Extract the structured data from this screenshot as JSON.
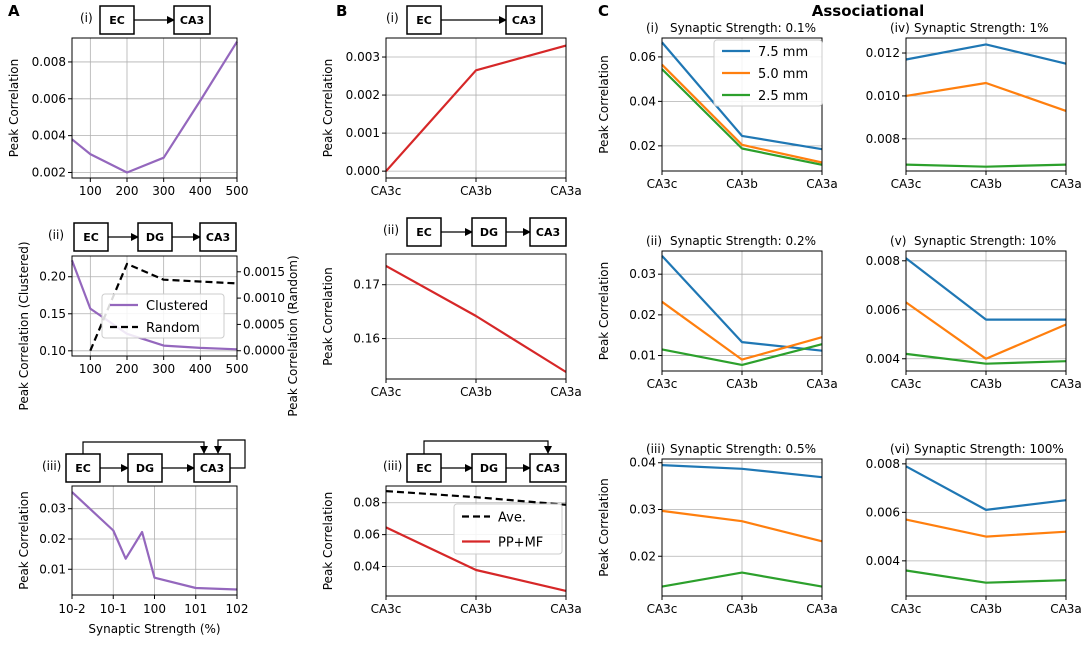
{
  "panel_letters": [
    "A",
    "B",
    "C"
  ],
  "associational_title": "Associational",
  "flow_labels": {
    "ec": "EC",
    "dg": "DG",
    "ca3": "CA3"
  },
  "colors": {
    "purple": "#9467bd",
    "red": "#d62728",
    "blue": "#1f77b4",
    "orange": "#ff7f0e",
    "green": "#2ca02c",
    "black": "#000000",
    "grid": "#b0b0b0"
  },
  "chart_data": [
    {
      "id": "A-i",
      "type": "line",
      "roman": "(i)",
      "title": "",
      "ylabel": "Peak Correlation",
      "xlabel": "",
      "x": [
        50,
        100,
        200,
        300,
        400,
        500
      ],
      "xlim": [
        50,
        500
      ],
      "xticks": [
        "100",
        "200",
        "300",
        "400",
        "500"
      ],
      "ylim": [
        0.0017,
        0.0093
      ],
      "yticks": [
        0.002,
        0.004,
        0.006,
        0.008
      ],
      "ytick_labels": [
        "0.002",
        "0.004",
        "0.006",
        "0.008"
      ],
      "series": [
        {
          "name": "",
          "values": [
            0.0038,
            0.003,
            0.002,
            0.0028,
            0.0059,
            0.0091
          ],
          "color": "#9467bd"
        }
      ]
    },
    {
      "id": "A-ii",
      "type": "line",
      "roman": "(ii)",
      "title": "",
      "ylabel": "Peak Correlation (Clustered)",
      "ylabel_right": "Peak Correlation (Random)",
      "xlabel": "",
      "x": [
        50,
        100,
        200,
        300,
        400,
        500
      ],
      "xlim": [
        50,
        500
      ],
      "xticks": [
        "100",
        "200",
        "300",
        "400",
        "500"
      ],
      "ylim": [
        0.093,
        0.228
      ],
      "yticks": [
        0.1,
        0.15,
        0.2
      ],
      "ytick_labels": [
        "0.10",
        "0.15",
        "0.20"
      ],
      "ylim_right": [
        -0.0001,
        0.0018
      ],
      "yticks_right": [
        0.0,
        0.0005,
        0.001,
        0.0015
      ],
      "ytick_labels_right": [
        "0.0000",
        "0.0005",
        "0.0010",
        "0.0015"
      ],
      "legend": [
        "Clustered",
        "Random"
      ],
      "series": [
        {
          "name": "Clustered",
          "values": [
            0.222,
            0.157,
            0.123,
            0.107,
            0.104,
            0.102
          ],
          "color": "#9467bd"
        },
        {
          "name": "Random",
          "axis": "right",
          "x": [
            100,
            200,
            300,
            500
          ],
          "values": [
            0.0,
            0.00165,
            0.00135,
            0.00128
          ],
          "color": "#000000",
          "dashed": true
        }
      ]
    },
    {
      "id": "A-iii",
      "type": "line",
      "roman": "(iii)",
      "title": "",
      "ylabel": "Peak Correlation",
      "xlabel": "Synaptic Strength (%)",
      "xscale": "log",
      "x": [
        0.01,
        0.1,
        0.2,
        0.5,
        1,
        10,
        100
      ],
      "xlim": [
        0.01,
        100
      ],
      "xticks": [
        "10-2",
        "10-1",
        "100",
        "101",
        "102"
      ],
      "ylim": [
        0.0015,
        0.0375
      ],
      "yticks": [
        0.01,
        0.02,
        0.03
      ],
      "ytick_labels": [
        "0.01",
        "0.02",
        "0.03"
      ],
      "series": [
        {
          "name": "",
          "values": [
            0.0355,
            0.0228,
            0.0135,
            0.0223,
            0.0072,
            0.0038,
            0.0033
          ],
          "color": "#9467bd"
        }
      ]
    },
    {
      "id": "B-i",
      "type": "line",
      "roman": "(i)",
      "title": "",
      "ylabel": "Peak Correlation",
      "xlabel": "",
      "categories": [
        "CA3c",
        "CA3b",
        "CA3a"
      ],
      "ylim": [
        -0.00018,
        0.0035
      ],
      "yticks": [
        0.0,
        0.001,
        0.002,
        0.003
      ],
      "ytick_labels": [
        "0.000",
        "0.001",
        "0.002",
        "0.003"
      ],
      "series": [
        {
          "name": "",
          "values": [
            0.0,
            0.00265,
            0.0033
          ],
          "color": "#d62728"
        }
      ]
    },
    {
      "id": "B-ii",
      "type": "line",
      "roman": "(ii)",
      "title": "",
      "ylabel": "Peak Correlation",
      "xlabel": "",
      "categories": [
        "CA3c",
        "CA3b",
        "CA3a"
      ],
      "ylim": [
        0.1525,
        0.1757
      ],
      "yticks": [
        0.16,
        0.17
      ],
      "ytick_labels": [
        "0.16",
        "0.17"
      ],
      "series": [
        {
          "name": "",
          "values": [
            0.1735,
            0.1642,
            0.1538
          ],
          "color": "#d62728"
        }
      ]
    },
    {
      "id": "B-iii",
      "type": "line",
      "roman": "(iii)",
      "title": "",
      "ylabel": "Peak Correlation",
      "xlabel": "",
      "categories": [
        "CA3c",
        "CA3b",
        "CA3a"
      ],
      "ylim": [
        0.0215,
        0.0905
      ],
      "yticks": [
        0.04,
        0.06,
        0.08
      ],
      "ytick_labels": [
        "0.04",
        "0.06",
        "0.08"
      ],
      "legend": [
        "Ave.",
        "PP+MF"
      ],
      "series": [
        {
          "name": "Ave.",
          "values": [
            0.0873,
            0.0835,
            0.0787
          ],
          "color": "#000000",
          "dashed": true
        },
        {
          "name": "PP+MF",
          "values": [
            0.0645,
            0.0378,
            0.0247
          ],
          "color": "#d62728"
        }
      ]
    },
    {
      "id": "C-i",
      "type": "line",
      "roman": "(i)",
      "title": "Synaptic Strength: 0.1%",
      "ylabel": "Peak Correlation",
      "xlabel": "",
      "categories": [
        "CA3c",
        "CA3b",
        "CA3a"
      ],
      "ylim": [
        0.0087,
        0.0685
      ],
      "yticks": [
        0.02,
        0.04,
        0.06
      ],
      "ytick_labels": [
        "0.02",
        "0.04",
        "0.06"
      ],
      "legend": [
        "7.5 mm",
        "5.0 mm",
        "2.5 mm"
      ],
      "series": [
        {
          "name": "7.5 mm",
          "values": [
            0.0665,
            0.0245,
            0.0185
          ],
          "color": "#1f77b4"
        },
        {
          "name": "5.0 mm",
          "values": [
            0.0565,
            0.0205,
            0.0125
          ],
          "color": "#ff7f0e"
        },
        {
          "name": "2.5 mm",
          "values": [
            0.0545,
            0.0188,
            0.0115
          ],
          "color": "#2ca02c"
        }
      ]
    },
    {
      "id": "C-iv",
      "type": "line",
      "roman": "(iv)",
      "title": "Synaptic Strength: 1%",
      "ylabel": "",
      "xlabel": "",
      "categories": [
        "CA3c",
        "CA3b",
        "CA3a"
      ],
      "ylim": [
        0.0065,
        0.0127
      ],
      "yticks": [
        0.008,
        0.01,
        0.012
      ],
      "ytick_labels": [
        "0.008",
        "0.010",
        "0.012"
      ],
      "series": [
        {
          "name": "7.5 mm",
          "values": [
            0.0117,
            0.0124,
            0.0115
          ],
          "color": "#1f77b4"
        },
        {
          "name": "5.0 mm",
          "values": [
            0.01,
            0.0106,
            0.0093
          ],
          "color": "#ff7f0e"
        },
        {
          "name": "2.5 mm",
          "values": [
            0.0068,
            0.0067,
            0.0068
          ],
          "color": "#2ca02c"
        }
      ]
    },
    {
      "id": "C-ii",
      "type": "line",
      "roman": "(ii)",
      "title": "Synaptic Strength: 0.2%",
      "ylabel": "Peak Correlation",
      "xlabel": "",
      "categories": [
        "CA3c",
        "CA3b",
        "CA3a"
      ],
      "ylim": [
        0.0062,
        0.0357
      ],
      "yticks": [
        0.01,
        0.02,
        0.03
      ],
      "ytick_labels": [
        "0.01",
        "0.02",
        "0.03"
      ],
      "series": [
        {
          "name": "7.5 mm",
          "values": [
            0.0345,
            0.0133,
            0.0112
          ],
          "color": "#1f77b4"
        },
        {
          "name": "5.0 mm",
          "values": [
            0.0232,
            0.009,
            0.0145
          ],
          "color": "#ff7f0e"
        },
        {
          "name": "2.5 mm",
          "values": [
            0.0115,
            0.0077,
            0.0128
          ],
          "color": "#2ca02c"
        }
      ]
    },
    {
      "id": "C-v",
      "type": "line",
      "roman": "(v)",
      "title": "Synaptic Strength: 10%",
      "ylabel": "",
      "xlabel": "",
      "categories": [
        "CA3c",
        "CA3b",
        "CA3a"
      ],
      "ylim": [
        0.0035,
        0.0084
      ],
      "yticks": [
        0.004,
        0.006,
        0.008
      ],
      "ytick_labels": [
        "0.004",
        "0.006",
        "0.008"
      ],
      "series": [
        {
          "name": "7.5 mm",
          "values": [
            0.0081,
            0.0056,
            0.0056
          ],
          "color": "#1f77b4"
        },
        {
          "name": "5.0 mm",
          "values": [
            0.0063,
            0.004,
            0.0054
          ],
          "color": "#ff7f0e"
        },
        {
          "name": "2.5 mm",
          "values": [
            0.0042,
            0.0038,
            0.0039
          ],
          "color": "#2ca02c"
        }
      ]
    },
    {
      "id": "C-iii",
      "type": "line",
      "roman": "(iii)",
      "title": "Synaptic Strength: 0.5%",
      "ylabel": "Peak Correlation",
      "xlabel": "",
      "categories": [
        "CA3c",
        "CA3b",
        "CA3a"
      ],
      "ylim": [
        0.0115,
        0.0408
      ],
      "yticks": [
        0.02,
        0.03,
        0.04
      ],
      "ytick_labels": [
        "0.02",
        "0.03",
        "0.04"
      ],
      "series": [
        {
          "name": "7.5 mm",
          "values": [
            0.0395,
            0.0387,
            0.0369
          ],
          "color": "#1f77b4"
        },
        {
          "name": "5.0 mm",
          "values": [
            0.0297,
            0.0275,
            0.0232
          ],
          "color": "#ff7f0e"
        },
        {
          "name": "2.5 mm",
          "values": [
            0.0135,
            0.0165,
            0.0135
          ],
          "color": "#2ca02c"
        }
      ]
    },
    {
      "id": "C-vi",
      "type": "line",
      "roman": "(vi)",
      "title": "Synaptic Strength: 100%",
      "ylabel": "",
      "xlabel": "",
      "categories": [
        "CA3c",
        "CA3b",
        "CA3a"
      ],
      "ylim": [
        0.00255,
        0.0082
      ],
      "yticks": [
        0.004,
        0.006,
        0.008
      ],
      "ytick_labels": [
        "0.004",
        "0.006",
        "0.008"
      ],
      "series": [
        {
          "name": "7.5 mm",
          "values": [
            0.0079,
            0.0061,
            0.0065
          ],
          "color": "#1f77b4"
        },
        {
          "name": "5.0 mm",
          "values": [
            0.0057,
            0.005,
            0.0052
          ],
          "color": "#ff7f0e"
        },
        {
          "name": "2.5 mm",
          "values": [
            0.0036,
            0.0031,
            0.0032
          ],
          "color": "#2ca02c"
        }
      ]
    }
  ]
}
